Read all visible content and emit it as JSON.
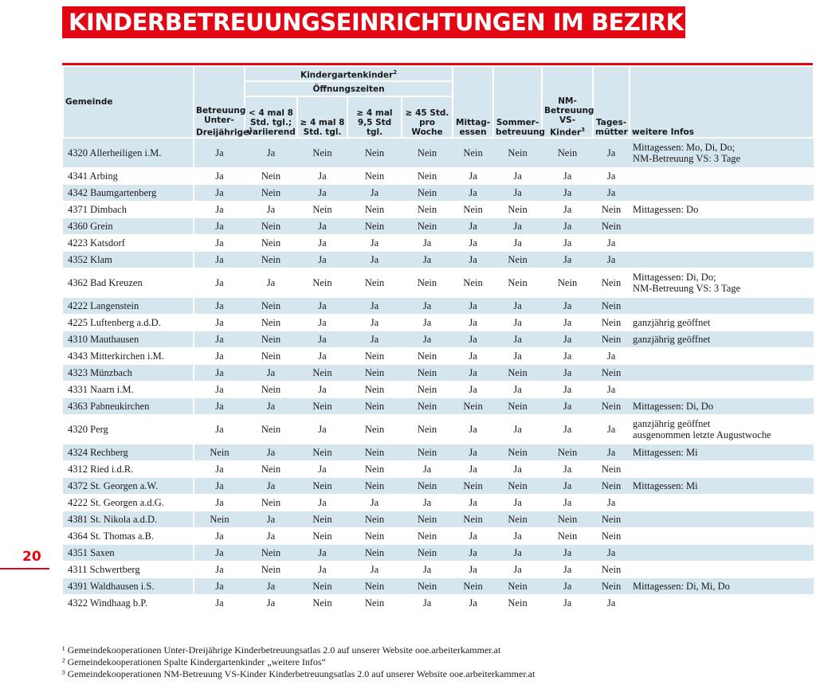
{
  "title": "KINDERBETREUUNGSEINRICHTUNGEN IM BEZIRK PERG",
  "page_number": "20",
  "header": {
    "gemeinde": "Gemeinde",
    "betreuung": "Betreuung Unter-Dreijährige",
    "betreuung_sup": "1",
    "kindergarten": "Kindergartenkinder",
    "kindergarten_sup": "2",
    "oeffnungszeiten": "Öffnungszeiten",
    "oz1": "< 4 mal 8 Std. tgl.; variierend",
    "oz2": "≥ 4 mal 8 Std. tgl.",
    "oz3": "≥ 4 mal 9,5 Std tgl.",
    "oz4": "≥ 45 Std. pro Woche",
    "mittag": "Mittag-essen",
    "sommer": "Sommer-betreuung",
    "nm": "NM-Betreuung VS-Kinder",
    "nm_sup": "3",
    "tages": "Tages-mütter",
    "weitere": "weitere Infos"
  },
  "rows": [
    {
      "gemeinde": "4320 Allerheiligen i.M.",
      "u3": "Ja",
      "oz1": "Ja",
      "oz2": "Nein",
      "oz3": "Nein",
      "oz4": "Nein",
      "mittag": "Nein",
      "sommer": "Nein",
      "nm": "Nein",
      "tages": "Ja",
      "info1": "Mittagessen: Mo, Di, Do;",
      "info2": "NM-Betreuung VS: 3 Tage"
    },
    {
      "gemeinde": "4341 Arbing",
      "u3": "Ja",
      "oz1": "Nein",
      "oz2": "Ja",
      "oz3": "Nein",
      "oz4": "Nein",
      "mittag": "Ja",
      "sommer": "Ja",
      "nm": "Ja",
      "tages": "Ja",
      "info1": "",
      "info2": ""
    },
    {
      "gemeinde": "4342 Baumgartenberg",
      "u3": "Ja",
      "oz1": "Nein",
      "oz2": "Ja",
      "oz3": "Ja",
      "oz4": "Nein",
      "mittag": "Ja",
      "sommer": "Ja",
      "nm": "Ja",
      "tages": "Ja",
      "info1": "",
      "info2": ""
    },
    {
      "gemeinde": "4371 Dimbach",
      "u3": "Ja",
      "oz1": "Ja",
      "oz2": "Nein",
      "oz3": "Nein",
      "oz4": "Nein",
      "mittag": "Nein",
      "sommer": "Nein",
      "nm": "Ja",
      "tages": "Nein",
      "info1": "Mittagessen: Do",
      "info2": ""
    },
    {
      "gemeinde": "4360 Grein",
      "u3": "Ja",
      "oz1": "Nein",
      "oz2": "Ja",
      "oz3": "Nein",
      "oz4": "Nein",
      "mittag": "Ja",
      "sommer": "Ja",
      "nm": "Ja",
      "tages": "Nein",
      "info1": "",
      "info2": ""
    },
    {
      "gemeinde": "4223 Katsdorf",
      "u3": "Ja",
      "oz1": "Nein",
      "oz2": "Ja",
      "oz3": "Ja",
      "oz4": "Ja",
      "mittag": "Ja",
      "sommer": "Ja",
      "nm": "Ja",
      "tages": "Ja",
      "info1": "",
      "info2": ""
    },
    {
      "gemeinde": "4352 Klam",
      "u3": "Ja",
      "oz1": "Nein",
      "oz2": "Ja",
      "oz3": "Ja",
      "oz4": "Ja",
      "mittag": "Ja",
      "sommer": "Nein",
      "nm": "Ja",
      "tages": "Ja",
      "info1": "",
      "info2": ""
    },
    {
      "gemeinde": "4362 Bad Kreuzen",
      "u3": "Ja",
      "oz1": "Ja",
      "oz2": "Nein",
      "oz3": "Nein",
      "oz4": "Nein",
      "mittag": "Nein",
      "sommer": "Nein",
      "nm": "Nein",
      "tages": "Nein",
      "info1": "Mittagessen: Di, Do;",
      "info2": "NM-Betreuung VS: 3 Tage"
    },
    {
      "gemeinde": "4222 Langenstein",
      "u3": "Ja",
      "oz1": "Nein",
      "oz2": "Ja",
      "oz3": "Ja",
      "oz4": "Ja",
      "mittag": "Ja",
      "sommer": "Ja",
      "nm": "Ja",
      "tages": "Nein",
      "info1": "",
      "info2": ""
    },
    {
      "gemeinde": "4225 Luftenberg a.d.D.",
      "u3": "Ja",
      "oz1": "Nein",
      "oz2": "Ja",
      "oz3": "Ja",
      "oz4": "Ja",
      "mittag": "Ja",
      "sommer": "Ja",
      "nm": "Ja",
      "tages": "Nein",
      "info1": "ganzjährig geöffnet",
      "info2": ""
    },
    {
      "gemeinde": "4310 Mauthausen",
      "u3": "Ja",
      "oz1": "Nein",
      "oz2": "Ja",
      "oz3": "Ja",
      "oz4": "Ja",
      "mittag": "Ja",
      "sommer": "Ja",
      "nm": "Ja",
      "tages": "Nein",
      "info1": "ganzjährig geöffnet",
      "info2": ""
    },
    {
      "gemeinde": "4343 Mitterkirchen i.M.",
      "u3": "Ja",
      "oz1": "Nein",
      "oz2": "Ja",
      "oz3": "Nein",
      "oz4": "Nein",
      "mittag": "Ja",
      "sommer": "Ja",
      "nm": "Ja",
      "tages": "Ja",
      "info1": "",
      "info2": ""
    },
    {
      "gemeinde": "4323 Münzbach",
      "u3": "Ja",
      "oz1": "Ja",
      "oz2": "Nein",
      "oz3": "Nein",
      "oz4": "Nein",
      "mittag": "Ja",
      "sommer": "Nein",
      "nm": "Ja",
      "tages": "Nein",
      "info1": "",
      "info2": ""
    },
    {
      "gemeinde": "4331 Naarn i.M.",
      "u3": "Ja",
      "oz1": "Nein",
      "oz2": "Ja",
      "oz3": "Nein",
      "oz4": "Nein",
      "mittag": "Ja",
      "sommer": "Ja",
      "nm": "Ja",
      "tages": "Ja",
      "info1": "",
      "info2": ""
    },
    {
      "gemeinde": "4363 Pabneukirchen",
      "u3": "Ja",
      "oz1": "Ja",
      "oz2": "Nein",
      "oz3": "Nein",
      "oz4": "Nein",
      "mittag": "Nein",
      "sommer": "Nein",
      "nm": "Ja",
      "tages": "Nein",
      "info1": "Mittagessen: Di, Do",
      "info2": ""
    },
    {
      "gemeinde": "4320 Perg",
      "u3": "Ja",
      "oz1": "Nein",
      "oz2": "Ja",
      "oz3": "Nein",
      "oz4": "Nein",
      "mittag": "Ja",
      "sommer": "Ja",
      "nm": "Ja",
      "tages": "Ja",
      "info1": "ganzjährig geöffnet",
      "info2": "ausgenommen letzte Augustwoche"
    },
    {
      "gemeinde": "4324 Rechberg",
      "u3": "Nein",
      "oz1": "Ja",
      "oz2": "Nein",
      "oz3": "Nein",
      "oz4": "Nein",
      "mittag": "Ja",
      "sommer": "Nein",
      "nm": "Nein",
      "tages": "Ja",
      "info1": "Mittagessen: Mi",
      "info2": ""
    },
    {
      "gemeinde": "4312 Ried i.d.R.",
      "u3": "Ja",
      "oz1": "Nein",
      "oz2": "Ja",
      "oz3": "Nein",
      "oz4": "Ja",
      "mittag": "Ja",
      "sommer": "Ja",
      "nm": "Ja",
      "tages": "Nein",
      "info1": "",
      "info2": ""
    },
    {
      "gemeinde": "4372 St. Georgen a.W.",
      "u3": "Ja",
      "oz1": "Ja",
      "oz2": "Nein",
      "oz3": "Nein",
      "oz4": "Nein",
      "mittag": "Nein",
      "sommer": "Nein",
      "nm": "Ja",
      "tages": "Nein",
      "info1": "Mittagessen: Mi",
      "info2": ""
    },
    {
      "gemeinde": "4222 St. Georgen a.d.G.",
      "u3": "Ja",
      "oz1": "Nein",
      "oz2": "Ja",
      "oz3": "Ja",
      "oz4": "Ja",
      "mittag": "Ja",
      "sommer": "Ja",
      "nm": "Ja",
      "tages": "Ja",
      "info1": "",
      "info2": ""
    },
    {
      "gemeinde": "4381 St. Nikola a.d.D.",
      "u3": "Nein",
      "oz1": "Ja",
      "oz2": "Nein",
      "oz3": "Nein",
      "oz4": "Nein",
      "mittag": "Nein",
      "sommer": "Nein",
      "nm": "Nein",
      "tages": "Nein",
      "info1": "",
      "info2": ""
    },
    {
      "gemeinde": "4364 St. Thomas a.B.",
      "u3": "Ja",
      "oz1": "Ja",
      "oz2": "Nein",
      "oz3": "Nein",
      "oz4": "Nein",
      "mittag": "Ja",
      "sommer": "Ja",
      "nm": "Nein",
      "tages": "Nein",
      "info1": "",
      "info2": ""
    },
    {
      "gemeinde": "4351 Saxen",
      "u3": "Ja",
      "oz1": "Nein",
      "oz2": "Ja",
      "oz3": "Nein",
      "oz4": "Nein",
      "mittag": "Ja",
      "sommer": "Ja",
      "nm": "Ja",
      "tages": "Ja",
      "info1": "",
      "info2": ""
    },
    {
      "gemeinde": "4311 Schwertberg",
      "u3": "Ja",
      "oz1": "Nein",
      "oz2": "Ja",
      "oz3": "Ja",
      "oz4": "Ja",
      "mittag": "Ja",
      "sommer": "Ja",
      "nm": "Ja",
      "tages": "Nein",
      "info1": "",
      "info2": ""
    },
    {
      "gemeinde": "4391 Waldhausen i.S.",
      "u3": "Ja",
      "oz1": "Ja",
      "oz2": "Nein",
      "oz3": "Nein",
      "oz4": "Nein",
      "mittag": "Nein",
      "sommer": "Nein",
      "nm": "Ja",
      "tages": "Nein",
      "info1": "Mittagessen: Di, Mi, Do",
      "info2": ""
    },
    {
      "gemeinde": "4322 Windhaag b.P.",
      "u3": "Ja",
      "oz1": "Ja",
      "oz2": "Nein",
      "oz3": "Nein",
      "oz4": "Ja",
      "mittag": "Ja",
      "sommer": "Nein",
      "nm": "Ja",
      "tages": "Ja",
      "info1": "",
      "info2": ""
    }
  ],
  "footnotes": [
    "¹ Gemeindekooperationen Unter-Dreijährige Kinderbetreuungsatlas 2.0 auf unserer Website ooe.arbeiterkammer.at",
    "² Gemeindekooperationen Spalte Kindergartenkinder „weitere Infos“",
    "³ Gemeindekooperationen NM-Betreuung VS-Kinder Kinderbetreuungsatlas 2.0 auf unserer Website ooe.arbeiterkammer.at"
  ]
}
